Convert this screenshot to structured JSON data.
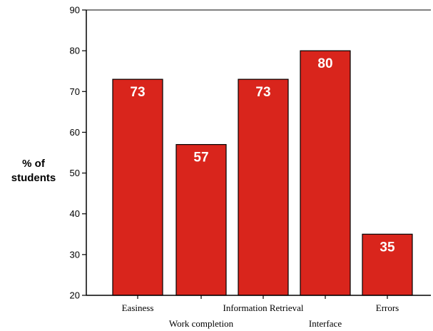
{
  "chart_data": {
    "type": "bar",
    "categories": [
      "Easiness",
      "Work completion",
      "Information Retrieval",
      "Interface",
      "Errors"
    ],
    "values": [
      73,
      57,
      73,
      80,
      35
    ],
    "data_labels": [
      "73",
      "57",
      "73",
      "80",
      "35"
    ],
    "title": "",
    "xlabel": "",
    "ylabel": [
      "% of",
      "students"
    ],
    "ylim": [
      20,
      90
    ],
    "yticks": [
      20,
      30,
      40,
      50,
      60,
      70,
      80,
      90
    ],
    "grid": false,
    "bar_color": "#d9251c",
    "bar_edge_color": "#000000"
  }
}
